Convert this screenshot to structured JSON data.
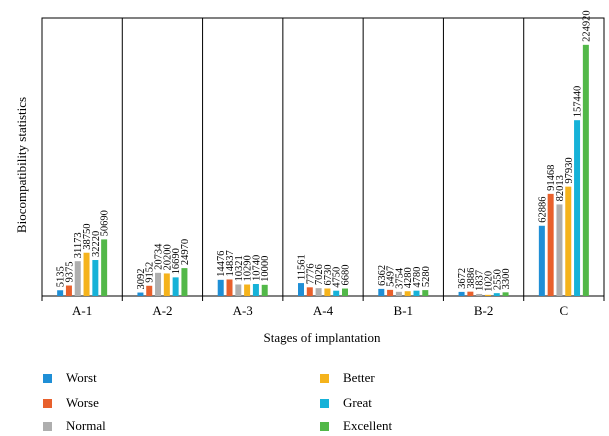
{
  "chart_data": {
    "type": "bar",
    "title": "",
    "xlabel": "Stages of implantation",
    "ylabel": "Biocompatibility statistics",
    "ylim": [
      0,
      240000
    ],
    "grid": false,
    "legend_position": "bottom",
    "categories": [
      "A-1",
      "A-2",
      "A-3",
      "A-4",
      "B-1",
      "B-2",
      "C"
    ],
    "series": [
      {
        "name": "Worst",
        "color": "#1f8fd6",
        "values": [
          5135,
          3092,
          14476,
          11561,
          6362,
          3672,
          62886
        ]
      },
      {
        "name": "Worse",
        "color": "#e8602c",
        "values": [
          9375,
          9152,
          14837,
          7776,
          5497,
          3886,
          91468
        ]
      },
      {
        "name": "Normal",
        "color": "#aeaeae",
        "values": [
          31173,
          20734,
          10321,
          7026,
          3754,
          1837,
          82013
        ]
      },
      {
        "name": "Better",
        "color": "#f5b31c",
        "values": [
          38750,
          20200,
          10290,
          6730,
          4280,
          1020,
          97930
        ]
      },
      {
        "name": "Great",
        "color": "#16b2d8",
        "values": [
          32220,
          16690,
          10740,
          4750,
          4780,
          2550,
          157440
        ]
      },
      {
        "name": "Excellent",
        "color": "#52b848",
        "values": [
          50690,
          24970,
          10000,
          6680,
          5280,
          3300,
          224920
        ]
      }
    ]
  }
}
